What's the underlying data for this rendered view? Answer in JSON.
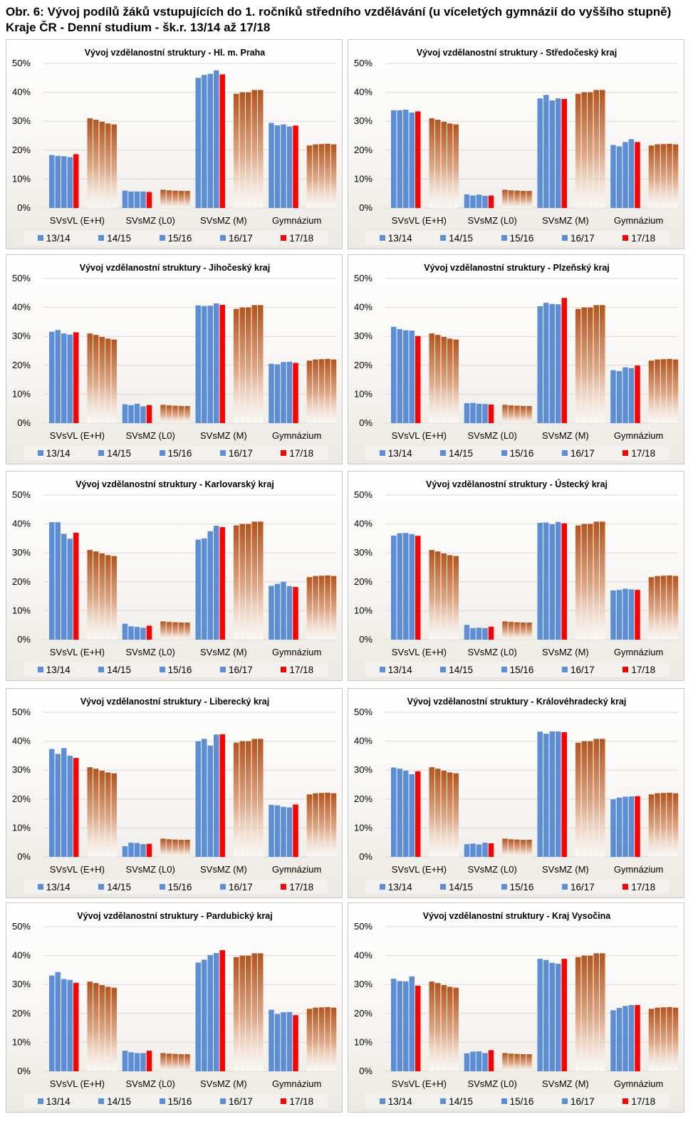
{
  "page": {
    "title_line1": "Obr. 6: Vývoj podílů žáků vstupujících do 1. ročníků středního vzdělávání (u víceletých gymnázií do vyššího stupně)",
    "title_line2": "Kraje ČR - Denní studium - šk.r. 13/14 až 17/18"
  },
  "colors": {
    "blue": "#5b8ed6",
    "red": "#ff0000",
    "brown_top": "#b5541c",
    "brown_bottom": "#ffffff",
    "grid": "#d9d9d9"
  },
  "chart_data": [
    {
      "type": "bar",
      "title": "Vývoj vzdělanostní struktury  - Hl. m. Praha",
      "categories": [
        "SVsVL (E+H)",
        "SVsMZ (L0)",
        "SVsMZ (M)",
        "Gymnázium"
      ],
      "yticks": [
        "0%",
        "10%",
        "20%",
        "30%",
        "40%",
        "50%"
      ],
      "ylim": [
        0,
        50
      ],
      "legend": [
        "13/14",
        "14/15",
        "15/16",
        "16/17",
        "17/18"
      ],
      "series": [
        {
          "name": "13/14",
          "values": [
            18.3,
            6.0,
            45.0,
            29.4
          ]
        },
        {
          "name": "14/15",
          "values": [
            18.0,
            5.7,
            46.0,
            28.6
          ]
        },
        {
          "name": "15/16",
          "values": [
            17.9,
            5.7,
            46.4,
            28.9
          ]
        },
        {
          "name": "16/17",
          "values": [
            17.6,
            5.7,
            47.6,
            28.2
          ]
        },
        {
          "name": "17/18",
          "values": [
            18.6,
            5.5,
            46.2,
            28.5
          ]
        }
      ],
      "reference": [
        31.0,
        30.5,
        29.8,
        29.2,
        28.9,
        6.3,
        6.1,
        6.0,
        5.9,
        5.9,
        39.5,
        40.0,
        40.0,
        40.8,
        40.8,
        21.6,
        22.0,
        22.1,
        22.2,
        22.0
      ]
    },
    {
      "type": "bar",
      "title": "Vývoj vzdělanostní struktury  - Středočeský  kraj",
      "categories": [
        "SVsVL (E+H)",
        "SVsMZ (L0)",
        "SVsMZ (M)",
        "Gymnázium"
      ],
      "yticks": [
        "0%",
        "10%",
        "20%",
        "30%",
        "40%",
        "50%"
      ],
      "ylim": [
        0,
        50
      ],
      "legend": [
        "13/14",
        "14/15",
        "15/16",
        "16/17",
        "17/18"
      ],
      "series": [
        {
          "name": "13/14",
          "values": [
            33.8,
            4.7,
            37.9,
            21.8
          ]
        },
        {
          "name": "14/15",
          "values": [
            33.8,
            4.3,
            39.1,
            21.3
          ]
        },
        {
          "name": "15/16",
          "values": [
            34.0,
            4.6,
            37.2,
            22.8
          ]
        },
        {
          "name": "16/17",
          "values": [
            33.0,
            4.2,
            37.9,
            23.8
          ]
        },
        {
          "name": "17/18",
          "values": [
            33.4,
            4.3,
            37.7,
            22.8
          ]
        }
      ],
      "reference": [
        31.0,
        30.5,
        29.8,
        29.2,
        28.9,
        6.3,
        6.1,
        6.0,
        5.9,
        5.9,
        39.5,
        40.0,
        40.0,
        40.8,
        40.8,
        21.6,
        22.0,
        22.1,
        22.2,
        22.0
      ]
    },
    {
      "type": "bar",
      "title": "Vývoj vzdělanostní struktury  - Jihočeský  kraj",
      "categories": [
        "SVsVL (E+H)",
        "SVsMZ (L0)",
        "SVsMZ (M)",
        "Gymnázium"
      ],
      "yticks": [
        "0%",
        "10%",
        "20%",
        "30%",
        "40%",
        "50%"
      ],
      "ylim": [
        0,
        50
      ],
      "legend": [
        "13/14",
        "14/15",
        "15/16",
        "16/17",
        "17/18"
      ],
      "series": [
        {
          "name": "13/14",
          "values": [
            31.6,
            6.5,
            40.7,
            20.5
          ]
        },
        {
          "name": "14/15",
          "values": [
            32.2,
            6.2,
            40.5,
            20.3
          ]
        },
        {
          "name": "15/16",
          "values": [
            31.0,
            6.7,
            40.6,
            21.1
          ]
        },
        {
          "name": "16/17",
          "values": [
            30.6,
            5.8,
            41.4,
            21.2
          ]
        },
        {
          "name": "17/18",
          "values": [
            31.4,
            6.2,
            40.9,
            20.8
          ]
        }
      ],
      "reference": [
        31.0,
        30.5,
        29.8,
        29.2,
        28.9,
        6.3,
        6.1,
        6.0,
        5.9,
        5.9,
        39.5,
        40.0,
        40.0,
        40.8,
        40.8,
        21.6,
        22.0,
        22.1,
        22.2,
        22.0
      ]
    },
    {
      "type": "bar",
      "title": "Vývoj vzdělanostní struktury  - Plzeňský  kraj",
      "categories": [
        "SVsVL (E+H)",
        "SVsMZ (L0)",
        "SVsMZ (M)",
        "Gymnázium"
      ],
      "yticks": [
        "0%",
        "10%",
        "20%",
        "30%",
        "40%",
        "50%"
      ],
      "ylim": [
        0,
        50
      ],
      "legend": [
        "13/14",
        "14/15",
        "15/16",
        "16/17",
        "17/18"
      ],
      "series": [
        {
          "name": "13/14",
          "values": [
            33.3,
            6.9,
            40.4,
            18.3
          ]
        },
        {
          "name": "14/15",
          "values": [
            32.5,
            7.0,
            41.6,
            18.0
          ]
        },
        {
          "name": "15/16",
          "values": [
            32.1,
            6.7,
            41.2,
            19.3
          ]
        },
        {
          "name": "16/17",
          "values": [
            32.0,
            6.6,
            41.1,
            19.0
          ]
        },
        {
          "name": "17/18",
          "values": [
            30.1,
            6.4,
            43.3,
            19.9
          ]
        }
      ],
      "reference": [
        31.0,
        30.5,
        29.8,
        29.2,
        28.9,
        6.3,
        6.1,
        6.0,
        5.9,
        5.9,
        39.5,
        40.0,
        40.0,
        40.8,
        40.8,
        21.6,
        22.0,
        22.1,
        22.2,
        22.0
      ]
    },
    {
      "type": "bar",
      "title": "Vývoj vzdělanostní struktury  - Karlovarský  kraj",
      "categories": [
        "SVsVL (E+H)",
        "SVsMZ (L0)",
        "SVsMZ (M)",
        "Gymnázium"
      ],
      "yticks": [
        "0%",
        "10%",
        "20%",
        "30%",
        "40%",
        "50%"
      ],
      "ylim": [
        0,
        50
      ],
      "legend": [
        "13/14",
        "14/15",
        "15/16",
        "16/17",
        "17/18"
      ],
      "series": [
        {
          "name": "13/14",
          "values": [
            40.6,
            5.5,
            34.6,
            18.6
          ]
        },
        {
          "name": "14/15",
          "values": [
            40.6,
            4.6,
            35.0,
            19.3
          ]
        },
        {
          "name": "15/16",
          "values": [
            36.6,
            4.4,
            37.5,
            20.0
          ]
        },
        {
          "name": "16/17",
          "values": [
            34.9,
            4.1,
            39.4,
            18.5
          ]
        },
        {
          "name": "17/18",
          "values": [
            37.0,
            4.8,
            38.9,
            18.2
          ]
        }
      ],
      "reference": [
        31.0,
        30.5,
        29.8,
        29.2,
        28.9,
        6.3,
        6.1,
        6.0,
        5.9,
        5.9,
        39.5,
        40.0,
        40.0,
        40.8,
        40.8,
        21.6,
        22.0,
        22.1,
        22.2,
        22.0
      ]
    },
    {
      "type": "bar",
      "title": "Vývoj vzdělanostní struktury  - Ústecký  kraj",
      "categories": [
        "SVsVL (E+H)",
        "SVsMZ (L0)",
        "SVsMZ (M)",
        "Gymnázium"
      ],
      "yticks": [
        "0%",
        "10%",
        "20%",
        "30%",
        "40%",
        "50%"
      ],
      "ylim": [
        0,
        50
      ],
      "legend": [
        "13/14",
        "14/15",
        "15/16",
        "16/17",
        "17/18"
      ],
      "series": [
        {
          "name": "13/14",
          "values": [
            36.0,
            5.1,
            40.4,
            17.0
          ]
        },
        {
          "name": "14/15",
          "values": [
            36.8,
            4.0,
            40.5,
            17.2
          ]
        },
        {
          "name": "15/16",
          "values": [
            36.9,
            4.1,
            39.9,
            17.6
          ]
        },
        {
          "name": "16/17",
          "values": [
            36.5,
            4.0,
            40.7,
            17.4
          ]
        },
        {
          "name": "17/18",
          "values": [
            35.9,
            4.5,
            40.2,
            17.2
          ]
        }
      ],
      "reference": [
        31.0,
        30.5,
        29.8,
        29.2,
        28.9,
        6.3,
        6.1,
        6.0,
        5.9,
        5.9,
        39.5,
        40.0,
        40.0,
        40.8,
        40.8,
        21.6,
        22.0,
        22.1,
        22.2,
        22.0
      ]
    },
    {
      "type": "bar",
      "title": "Vývoj vzdělanostní struktury  - Liberecký  kraj",
      "categories": [
        "SVsVL (E+H)",
        "SVsMZ (L0)",
        "SVsMZ (M)",
        "Gymnázium"
      ],
      "yticks": [
        "0%",
        "10%",
        "20%",
        "30%",
        "40%",
        "50%"
      ],
      "ylim": [
        0,
        50
      ],
      "legend": [
        "13/14",
        "14/15",
        "15/16",
        "16/17",
        "17/18"
      ],
      "series": [
        {
          "name": "13/14",
          "values": [
            37.3,
            3.7,
            40.0,
            18.0
          ]
        },
        {
          "name": "14/15",
          "values": [
            35.6,
            4.9,
            40.8,
            17.8
          ]
        },
        {
          "name": "15/16",
          "values": [
            37.6,
            4.8,
            38.5,
            17.3
          ]
        },
        {
          "name": "16/17",
          "values": [
            35.0,
            4.4,
            42.3,
            17.1
          ]
        },
        {
          "name": "17/18",
          "values": [
            34.2,
            4.5,
            42.4,
            18.1
          ]
        }
      ],
      "reference": [
        31.0,
        30.5,
        29.8,
        29.2,
        28.9,
        6.3,
        6.1,
        6.0,
        5.9,
        5.9,
        39.5,
        40.0,
        40.0,
        40.8,
        40.8,
        21.6,
        22.0,
        22.1,
        22.2,
        22.0
      ]
    },
    {
      "type": "bar",
      "title": "Vývoj vzdělanostní struktury  - Královéhradecký  kraj",
      "categories": [
        "SVsVL (E+H)",
        "SVsMZ (L0)",
        "SVsMZ (M)",
        "Gymnázium"
      ],
      "yticks": [
        "0%",
        "10%",
        "20%",
        "30%",
        "40%",
        "50%"
      ],
      "ylim": [
        0,
        50
      ],
      "legend": [
        "13/14",
        "14/15",
        "15/16",
        "16/17",
        "17/18"
      ],
      "series": [
        {
          "name": "13/14",
          "values": [
            30.9,
            4.4,
            43.3,
            19.9
          ]
        },
        {
          "name": "14/15",
          "values": [
            30.5,
            4.6,
            42.6,
            20.5
          ]
        },
        {
          "name": "15/16",
          "values": [
            29.8,
            4.3,
            43.4,
            20.8
          ]
        },
        {
          "name": "16/17",
          "values": [
            28.6,
            4.9,
            43.4,
            20.9
          ]
        },
        {
          "name": "17/18",
          "values": [
            29.6,
            4.7,
            43.1,
            21.0
          ]
        }
      ],
      "reference": [
        31.0,
        30.5,
        29.8,
        29.2,
        28.9,
        6.3,
        6.1,
        6.0,
        5.9,
        5.9,
        39.5,
        40.0,
        40.0,
        40.8,
        40.8,
        21.6,
        22.0,
        22.1,
        22.2,
        22.0
      ]
    },
    {
      "type": "bar",
      "title": "Vývoj vzdělanostní struktury  - Pardubický  kraj",
      "categories": [
        "SVsVL (E+H)",
        "SVsMZ (L0)",
        "SVsMZ (M)",
        "Gymnázium"
      ],
      "yticks": [
        "0%",
        "10%",
        "20%",
        "30%",
        "40%",
        "50%"
      ],
      "ylim": [
        0,
        50
      ],
      "legend": [
        "13/14",
        "14/15",
        "15/16",
        "16/17",
        "17/18"
      ],
      "series": [
        {
          "name": "13/14",
          "values": [
            33.1,
            7.1,
            37.6,
            21.3
          ]
        },
        {
          "name": "14/15",
          "values": [
            34.3,
            6.6,
            38.6,
            19.8
          ]
        },
        {
          "name": "15/16",
          "values": [
            31.9,
            6.3,
            40.2,
            20.4
          ]
        },
        {
          "name": "16/17",
          "values": [
            31.6,
            6.3,
            40.9,
            20.5
          ]
        },
        {
          "name": "17/18",
          "values": [
            30.6,
            7.1,
            41.9,
            19.4
          ]
        }
      ],
      "reference": [
        31.0,
        30.5,
        29.8,
        29.2,
        28.9,
        6.3,
        6.1,
        6.0,
        5.9,
        5.9,
        39.5,
        40.0,
        40.0,
        40.8,
        40.8,
        21.6,
        22.0,
        22.1,
        22.2,
        22.0
      ]
    },
    {
      "type": "bar",
      "title": "Vývoj vzdělanostní struktury  - Kraj Vysočina",
      "categories": [
        "SVsVL (E+H)",
        "SVsMZ (L0)",
        "SVsMZ (M)",
        "Gymnázium"
      ],
      "yticks": [
        "0%",
        "10%",
        "20%",
        "30%",
        "40%",
        "50%"
      ],
      "ylim": [
        0,
        50
      ],
      "legend": [
        "13/14",
        "14/15",
        "15/16",
        "16/17",
        "17/18"
      ],
      "series": [
        {
          "name": "13/14",
          "values": [
            32.0,
            6.2,
            38.9,
            21.1
          ]
        },
        {
          "name": "14/15",
          "values": [
            31.2,
            6.8,
            38.5,
            21.9
          ]
        },
        {
          "name": "15/16",
          "values": [
            31.1,
            6.9,
            37.5,
            22.6
          ]
        },
        {
          "name": "16/17",
          "values": [
            32.8,
            6.3,
            37.2,
            22.9
          ]
        },
        {
          "name": "17/18",
          "values": [
            29.6,
            7.3,
            38.9,
            22.9
          ]
        }
      ],
      "reference": [
        31.0,
        30.5,
        29.8,
        29.2,
        28.9,
        6.3,
        6.1,
        6.0,
        5.9,
        5.9,
        39.5,
        40.0,
        40.0,
        40.8,
        40.8,
        21.6,
        22.0,
        22.1,
        22.2,
        22.0
      ]
    }
  ]
}
